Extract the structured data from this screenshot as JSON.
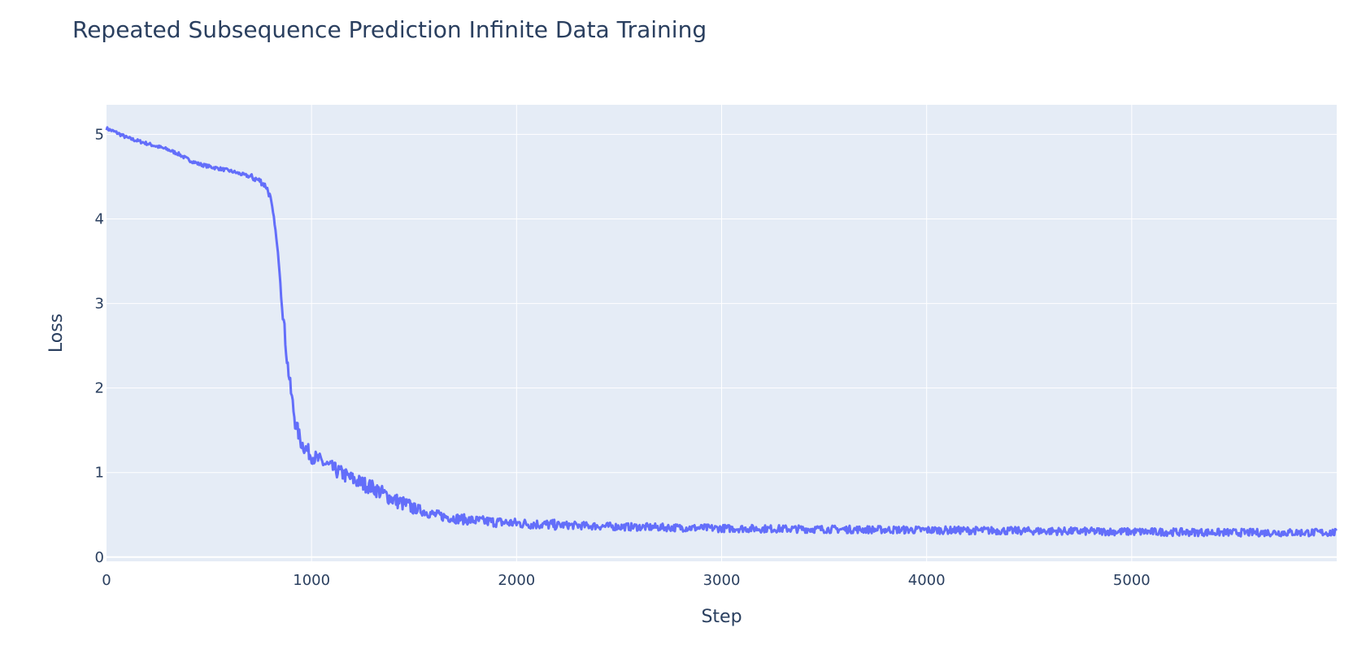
{
  "title": "Repeated Subsequence Prediction Infinite Data Training",
  "colors": {
    "plot_bg": "#e5ecf6",
    "grid": "#ffffff",
    "line": "#636efa",
    "text": "#2a3f5f"
  },
  "chart_data": {
    "type": "line",
    "title": "Repeated Subsequence Prediction Infinite Data Training",
    "xlabel": "Step",
    "ylabel": "Loss",
    "xlim": [
      0,
      6000
    ],
    "ylim": [
      -0.05,
      5.35
    ],
    "xticks": [
      0,
      1000,
      2000,
      3000,
      4000,
      5000
    ],
    "yticks": [
      0,
      1,
      2,
      3,
      4,
      5
    ],
    "grid": true,
    "legend": false,
    "values_are_estimated": true,
    "series": [
      {
        "name": "Loss",
        "x": [
          0,
          50,
          100,
          200,
          300,
          350,
          400,
          450,
          500,
          600,
          700,
          750,
          780,
          800,
          820,
          840,
          860,
          880,
          900,
          920,
          950,
          1000,
          1100,
          1200,
          1300,
          1400,
          1500,
          1600,
          1700,
          1800,
          2000,
          2200,
          2500,
          3000,
          3500,
          4000,
          4500,
          5000,
          5500,
          6000
        ],
        "y": [
          5.07,
          5.02,
          4.96,
          4.89,
          4.82,
          4.77,
          4.7,
          4.65,
          4.62,
          4.57,
          4.5,
          4.45,
          4.38,
          4.25,
          3.95,
          3.5,
          2.9,
          2.35,
          1.95,
          1.6,
          1.35,
          1.2,
          1.05,
          0.92,
          0.82,
          0.68,
          0.58,
          0.5,
          0.46,
          0.43,
          0.4,
          0.38,
          0.36,
          0.34,
          0.33,
          0.32,
          0.31,
          0.3,
          0.29,
          0.29
        ]
      }
    ]
  }
}
